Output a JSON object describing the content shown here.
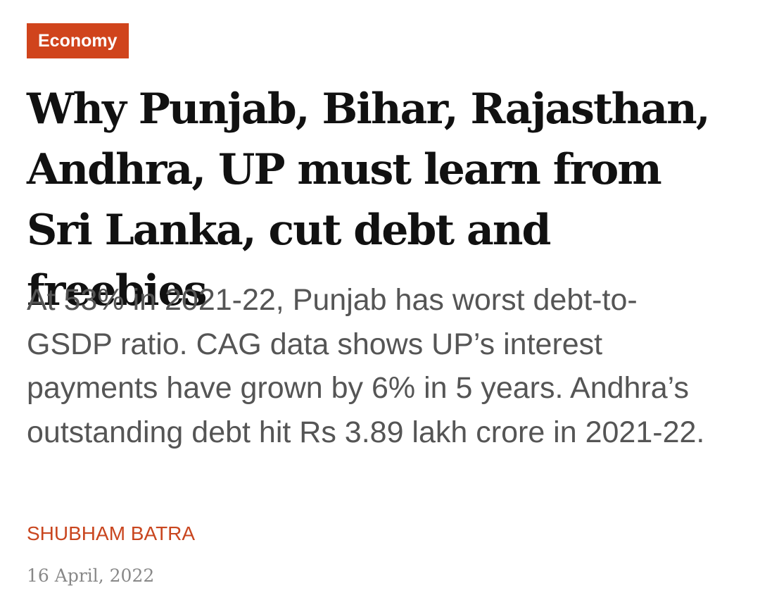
{
  "category": "Economy",
  "headline": "Why Punjab, Bihar, Rajasthan, Andhra, UP must learn from Sri Lanka, cut debt and freebies",
  "summary": "At 53% in 2021-22, Punjab has worst debt-to-GSDP ratio. CAG data shows UP’s interest payments have grown by 6% in 5 years. Andhra’s outstanding debt hit Rs 3.89 lakh crore in 2021-22.",
  "author": "SHUBHAM BATRA",
  "date": "16 April, 2022"
}
